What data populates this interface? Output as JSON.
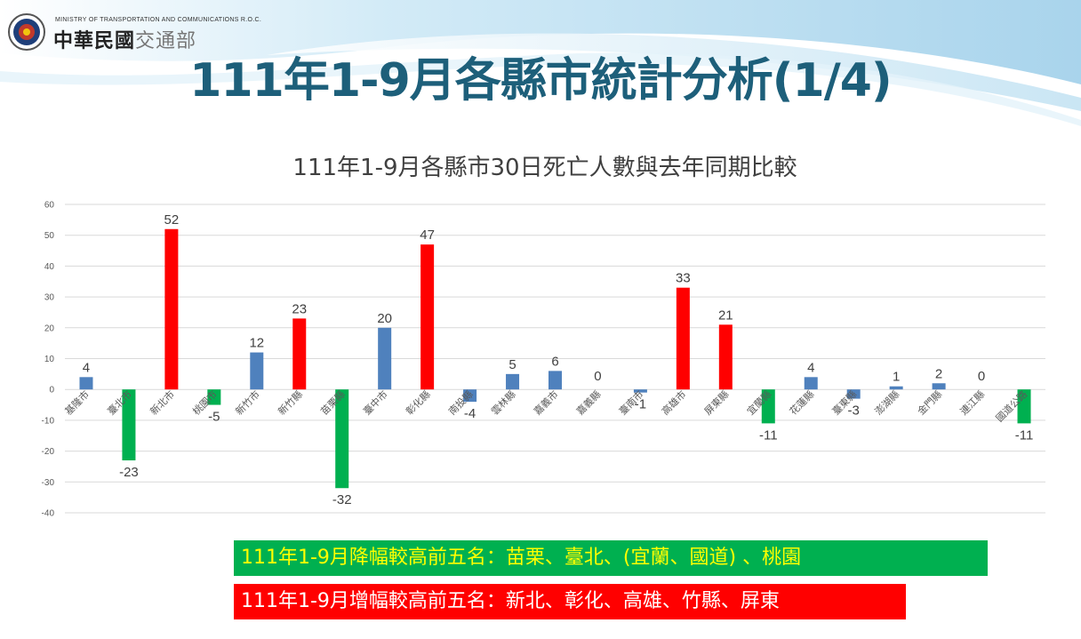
{
  "header": {
    "ministry_en": "MINISTRY OF TRANSPORTATION AND COMMUNICATIONS R.O.C.",
    "ministry_zh_main": "中華民國",
    "ministry_zh_dept": "交通部"
  },
  "slide_title": "111年1-9月各縣市統計分析(1/4)",
  "colors": {
    "title": "#1d5f7a",
    "increase": "#ff0000",
    "decrease": "#00b050",
    "neutral": "#4f81bd",
    "banner_green_text": "#ffff00",
    "banner_red_text": "#ffffff"
  },
  "chart_data": {
    "type": "bar",
    "title": "111年1-9月各縣市30日死亡人數與去年同期比較",
    "xlabel": "",
    "ylabel": "",
    "ylim": [
      -40,
      60
    ],
    "yticks": [
      60,
      50,
      40,
      30,
      20,
      10,
      0,
      -10,
      -20,
      -30,
      -40
    ],
    "grid": true,
    "legend": "none",
    "categories": [
      "基隆市",
      "臺北市",
      "新北市",
      "桃園市",
      "新竹市",
      "新竹縣",
      "苗栗縣",
      "臺中市",
      "彰化縣",
      "南投縣",
      "雲林縣",
      "嘉義市",
      "嘉義縣",
      "臺南市",
      "高雄市",
      "屏東縣",
      "宜蘭縣",
      "花蓮縣",
      "臺東縣",
      "澎湖縣",
      "金門縣",
      "連江縣",
      "國道公路"
    ],
    "values": [
      4,
      -23,
      52,
      -5,
      12,
      23,
      -32,
      20,
      47,
      -4,
      5,
      6,
      0,
      -1,
      33,
      21,
      -11,
      4,
      -3,
      1,
      2,
      0,
      -11
    ],
    "bar_colors": [
      "#4f81bd",
      "#00b050",
      "#ff0000",
      "#00b050",
      "#4f81bd",
      "#ff0000",
      "#00b050",
      "#4f81bd",
      "#ff0000",
      "#4f81bd",
      "#4f81bd",
      "#4f81bd",
      "#4f81bd",
      "#4f81bd",
      "#ff0000",
      "#ff0000",
      "#00b050",
      "#4f81bd",
      "#4f81bd",
      "#4f81bd",
      "#4f81bd",
      "#4f81bd",
      "#00b050"
    ]
  },
  "banners": {
    "decrease_top5": "111年1-9月降幅較高前五名：苗栗、臺北、(宜蘭、國道) 、桃園",
    "increase_top5": "111年1-9月增幅較高前五名：新北、彰化、高雄、竹縣、屏東"
  }
}
